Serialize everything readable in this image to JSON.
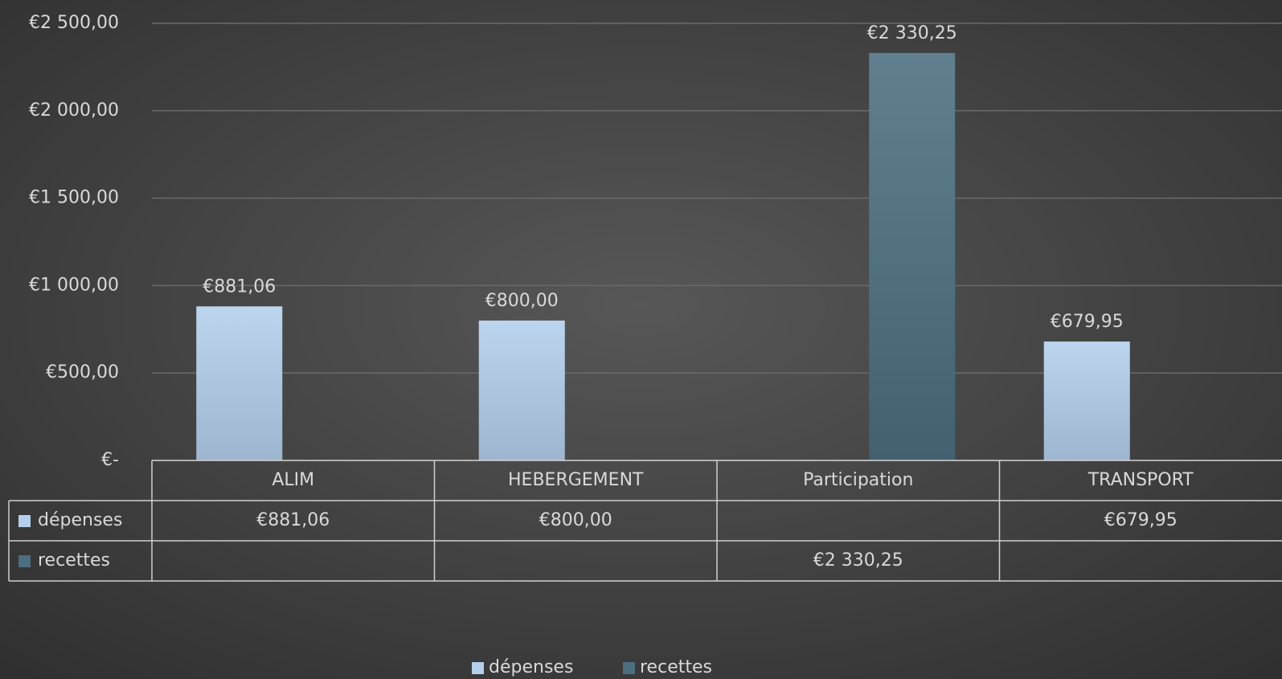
{
  "chart_data": {
    "type": "bar",
    "categories": [
      "ALIM",
      "HEBERGEMENT",
      "Participation",
      "TRANSPORT"
    ],
    "series": [
      {
        "name": "dépenses",
        "color": "#b3cfeb",
        "values": [
          881.06,
          800,
          null,
          679.95
        ],
        "value_labels": [
          "€881,06",
          "€800,00",
          null,
          "€679,95"
        ]
      },
      {
        "name": "recettes",
        "color": "#4b6e80",
        "values": [
          null,
          null,
          2330.25,
          null
        ],
        "value_labels": [
          null,
          null,
          "€2 330,25",
          null
        ]
      }
    ],
    "ylim": [
      0,
      2500
    ],
    "yticks": [
      {
        "value": 0,
        "label": "€-"
      },
      {
        "value": 500,
        "label": "€500,00"
      },
      {
        "value": 1000,
        "label": "€1 000,00"
      },
      {
        "value": 1500,
        "label": "€1 500,00"
      },
      {
        "value": 2000,
        "label": "€2 000,00"
      },
      {
        "value": 2500,
        "label": "€2 500,00"
      }
    ],
    "grid": true,
    "legend": "bottom"
  }
}
